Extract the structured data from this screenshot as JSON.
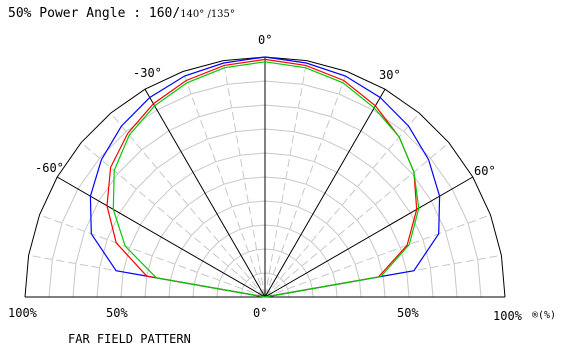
{
  "chart_data": {
    "type": "polar",
    "title_prefix": "50% Power Angle  :  160/",
    "title_suffix": "140° /135°",
    "caption": "FAR FIELD PATTERN",
    "angle_labels": [
      {
        "angle": 0,
        "text": "0°"
      },
      {
        "angle": -30,
        "text": "-30°"
      },
      {
        "angle": 30,
        "text": "30°"
      },
      {
        "angle": -60,
        "text": "-60°"
      },
      {
        "angle": 60,
        "text": "60°"
      }
    ],
    "radial_labels": {
      "left_100": "100%",
      "left_50": "50%",
      "center_0": "0°",
      "right_50": "50%",
      "right_100": "100%",
      "unit": "®(%)"
    },
    "radial_grid": [
      10,
      20,
      30,
      40,
      50,
      60,
      70,
      80,
      90
    ],
    "angle_range": [
      -90,
      90
    ],
    "series": [
      {
        "color": "#0000ff",
        "points": [
          {
            "angle": -90,
            "r": 0
          },
          {
            "angle": -80,
            "r": 63
          },
          {
            "angle": -70,
            "r": 77
          },
          {
            "angle": -60,
            "r": 84
          },
          {
            "angle": -50,
            "r": 89
          },
          {
            "angle": -40,
            "r": 93
          },
          {
            "angle": -30,
            "r": 96
          },
          {
            "angle": -20,
            "r": 98
          },
          {
            "angle": -10,
            "r": 99
          },
          {
            "angle": 0,
            "r": 100
          },
          {
            "angle": 10,
            "r": 99
          },
          {
            "angle": 20,
            "r": 98
          },
          {
            "angle": 30,
            "r": 96
          },
          {
            "angle": 40,
            "r": 93
          },
          {
            "angle": 50,
            "r": 89
          },
          {
            "angle": 60,
            "r": 84
          },
          {
            "angle": 70,
            "r": 77
          },
          {
            "angle": 80,
            "r": 63
          },
          {
            "angle": 90,
            "r": 0
          }
        ]
      },
      {
        "color": "#ff0000",
        "points": [
          {
            "angle": -90,
            "r": 0
          },
          {
            "angle": -80,
            "r": 50
          },
          {
            "angle": -70,
            "r": 66
          },
          {
            "angle": -60,
            "r": 76
          },
          {
            "angle": -50,
            "r": 84
          },
          {
            "angle": -40,
            "r": 89
          },
          {
            "angle": -30,
            "r": 93
          },
          {
            "angle": -20,
            "r": 96
          },
          {
            "angle": -10,
            "r": 98
          },
          {
            "angle": 0,
            "r": 99
          },
          {
            "angle": 10,
            "r": 98
          },
          {
            "angle": 20,
            "r": 96
          },
          {
            "angle": 30,
            "r": 92
          },
          {
            "angle": 40,
            "r": 87
          },
          {
            "angle": 50,
            "r": 81
          },
          {
            "angle": 60,
            "r": 73
          },
          {
            "angle": 70,
            "r": 63
          },
          {
            "angle": 80,
            "r": 48
          },
          {
            "angle": 90,
            "r": 0
          }
        ]
      },
      {
        "color": "#00cc00",
        "points": [
          {
            "angle": -90,
            "r": 0
          },
          {
            "angle": -80,
            "r": 46
          },
          {
            "angle": -70,
            "r": 62
          },
          {
            "angle": -60,
            "r": 73
          },
          {
            "angle": -50,
            "r": 82
          },
          {
            "angle": -40,
            "r": 88
          },
          {
            "angle": -30,
            "r": 92
          },
          {
            "angle": -20,
            "r": 95
          },
          {
            "angle": -10,
            "r": 97
          },
          {
            "angle": 0,
            "r": 98
          },
          {
            "angle": 10,
            "r": 97
          },
          {
            "angle": 20,
            "r": 95
          },
          {
            "angle": 30,
            "r": 91
          },
          {
            "angle": 40,
            "r": 87
          },
          {
            "angle": 50,
            "r": 81
          },
          {
            "angle": 60,
            "r": 74
          },
          {
            "angle": 70,
            "r": 64
          },
          {
            "angle": 80,
            "r": 49
          },
          {
            "angle": 90,
            "r": 0
          }
        ]
      }
    ]
  }
}
